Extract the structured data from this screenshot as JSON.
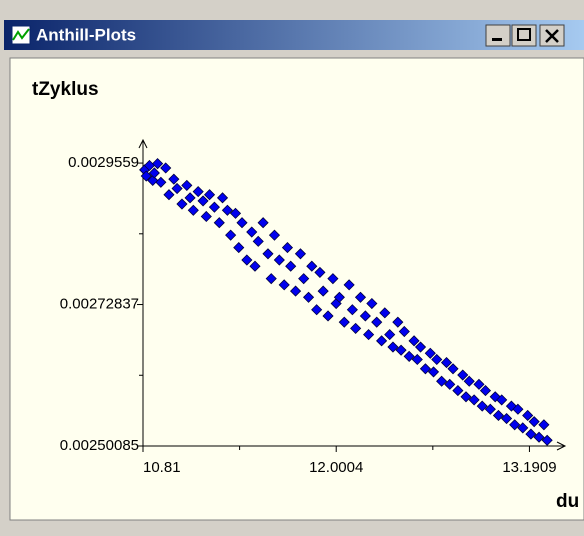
{
  "window": {
    "title": "Anthill-Plots"
  },
  "chart_data": {
    "type": "scatter",
    "ylabel": "tZyklus",
    "xlabel": "du",
    "color": "#0000ee",
    "xlim": [
      10.81,
      13.41
    ],
    "ylim": [
      0.00250085,
      0.002993
    ],
    "xticks": [
      10.81,
      12.0004,
      13.1909
    ],
    "xminor_ticks": [
      11.4052,
      12.59565
    ],
    "yticks": [
      0.00250085,
      0.00272837,
      0.0029559
    ],
    "yminor_ticks": [
      0.00261461,
      0.00284214
    ],
    "x": [
      10.82,
      10.83,
      10.85,
      10.87,
      10.88,
      10.9,
      10.92,
      10.95,
      10.97,
      11.0,
      11.02,
      11.05,
      11.08,
      11.1,
      11.12,
      11.15,
      11.18,
      11.2,
      11.22,
      11.25,
      11.28,
      11.3,
      11.33,
      11.35,
      11.38,
      11.4,
      11.42,
      11.45,
      11.48,
      11.5,
      11.52,
      11.55,
      11.58,
      11.6,
      11.62,
      11.65,
      11.68,
      11.7,
      11.72,
      11.75,
      11.78,
      11.8,
      11.83,
      11.85,
      11.88,
      11.9,
      11.92,
      11.95,
      11.98,
      12.0,
      12.02,
      12.05,
      12.08,
      12.1,
      12.12,
      12.15,
      12.18,
      12.2,
      12.22,
      12.25,
      12.28,
      12.3,
      12.33,
      12.35,
      12.38,
      12.4,
      12.42,
      12.45,
      12.48,
      12.5,
      12.52,
      12.55,
      12.58,
      12.6,
      12.62,
      12.65,
      12.68,
      12.7,
      12.72,
      12.75,
      12.78,
      12.8,
      12.82,
      12.85,
      12.88,
      12.9,
      12.92,
      12.95,
      12.98,
      13.0,
      13.02,
      13.05,
      13.08,
      13.1,
      13.12,
      13.15,
      13.18,
      13.2,
      13.22,
      13.25,
      13.28,
      13.3
    ],
    "values": [
      0.002945,
      0.002935,
      0.002952,
      0.002928,
      0.00294,
      0.002955,
      0.002925,
      0.002948,
      0.002905,
      0.00293,
      0.002915,
      0.00289,
      0.00292,
      0.0029,
      0.00288,
      0.00291,
      0.002895,
      0.00287,
      0.002905,
      0.002885,
      0.00286,
      0.0029,
      0.00288,
      0.00284,
      0.002875,
      0.00282,
      0.00286,
      0.0028,
      0.002845,
      0.00279,
      0.00283,
      0.00286,
      0.00281,
      0.00277,
      0.00284,
      0.0028,
      0.00276,
      0.00282,
      0.00279,
      0.00275,
      0.00281,
      0.00277,
      0.00274,
      0.00279,
      0.00272,
      0.00278,
      0.00275,
      0.00271,
      0.00277,
      0.00273,
      0.00274,
      0.0027,
      0.00276,
      0.00272,
      0.00269,
      0.00274,
      0.00271,
      0.00268,
      0.00273,
      0.0027,
      0.00267,
      0.002715,
      0.00268,
      0.00266,
      0.0027,
      0.002655,
      0.002685,
      0.002645,
      0.00267,
      0.00264,
      0.00266,
      0.002625,
      0.00265,
      0.00262,
      0.00264,
      0.002605,
      0.002635,
      0.0026,
      0.002625,
      0.00259,
      0.002615,
      0.00258,
      0.002605,
      0.002575,
      0.0026,
      0.002565,
      0.00259,
      0.00256,
      0.00258,
      0.00255,
      0.002575,
      0.002545,
      0.002565,
      0.002535,
      0.00256,
      0.00253,
      0.00255,
      0.00252,
      0.00254,
      0.002515,
      0.002535,
      0.00251
    ]
  }
}
